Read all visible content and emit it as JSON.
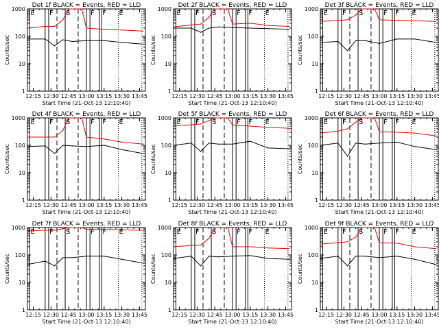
{
  "chart_data": {
    "type": "line",
    "colors": {
      "events": "#000000",
      "lld": "#e00000"
    },
    "yscale": "log",
    "ylim": [
      1,
      1000
    ],
    "y_ticks": [
      1,
      10,
      100,
      1000
    ],
    "y_tick_labels": [
      "1",
      "10",
      "100",
      "1000"
    ],
    "ylabel": "Counts/sec",
    "xlabel": "Start Time (21-Oct-13 12:10:40)",
    "xlim": [
      "12:10",
      "13:50"
    ],
    "x_ticks": [
      "12:15",
      "12:30",
      "12:45",
      "13:00",
      "13:15",
      "13:30",
      "13:45"
    ],
    "x_tick_labels": [
      "12:15",
      "12:30",
      "12:45",
      "13:00",
      "13:15",
      "13:30",
      "13:45"
    ],
    "markers": [
      {
        "time": "12:12",
        "style": "solid",
        "label": "E"
      },
      {
        "time": "12:25",
        "style": "solid",
        "label": ""
      },
      {
        "time": "12:28",
        "style": "solid",
        "label": "F"
      },
      {
        "time": "12:35",
        "style": "dashed",
        "label": ""
      },
      {
        "time": "12:42",
        "style": "solid",
        "label": "S"
      },
      {
        "time": "12:53",
        "style": "dashed",
        "label": ""
      },
      {
        "time": "13:00",
        "style": "solid",
        "label": ""
      },
      {
        "time": "13:03",
        "style": "solid",
        "label": "F"
      },
      {
        "time": "13:11",
        "style": "solid",
        "label": ""
      },
      {
        "time": "13:13",
        "style": "solid",
        "label": "F"
      },
      {
        "time": "13:27",
        "style": "dotted",
        "label": "E"
      },
      {
        "time": "13:47",
        "style": "dotted",
        "label": ""
      }
    ],
    "panels": [
      {
        "title": "Det 1f BLACK = Events, RED = LLD",
        "series": [
          {
            "name": "Events",
            "x": [
              "12:10",
              "12:25",
              "12:33",
              "12:40",
              "12:48",
              "13:00",
              "13:15",
              "13:30",
              "13:48"
            ],
            "values": [
              80,
              80,
              45,
              75,
              65,
              70,
              70,
              60,
              52
            ]
          },
          {
            "name": "LLD",
            "x": [
              "12:10",
              "12:25",
              "12:33",
              "12:40",
              "12:45",
              "12:50",
              "12:56",
              "13:00",
              "13:15",
              "13:30",
              "13:48"
            ],
            "values": [
              200,
              230,
              230,
              400,
              1000,
              1000,
              1000,
              200,
              180,
              170,
              155
            ]
          }
        ]
      },
      {
        "title": "Det 2f BLACK = Events, RED = LLD",
        "series": [
          {
            "name": "Events",
            "x": [
              "12:10",
              "12:25",
              "12:33",
              "12:40",
              "12:48",
              "13:00",
              "13:15",
              "13:30",
              "13:48"
            ],
            "values": [
              200,
              200,
              140,
              200,
              220,
              210,
              200,
              190,
              180
            ]
          },
          {
            "name": "LLD",
            "x": [
              "12:10",
              "12:25",
              "12:33",
              "12:40",
              "12:45",
              "12:50",
              "12:56",
              "13:00",
              "13:15",
              "13:30",
              "13:48"
            ],
            "values": [
              220,
              260,
              280,
              500,
              1000,
              1000,
              1000,
              280,
              300,
              250,
              230
            ]
          }
        ]
      },
      {
        "title": "Det 3f BLACK = Events, RED = LLD",
        "series": [
          {
            "name": "Events",
            "x": [
              "12:10",
              "12:25",
              "12:33",
              "12:40",
              "12:48",
              "13:00",
              "13:15",
              "13:30",
              "13:48"
            ],
            "values": [
              60,
              65,
              30,
              70,
              70,
              55,
              80,
              80,
              60
            ]
          },
          {
            "name": "LLD",
            "x": [
              "12:10",
              "12:25",
              "12:33",
              "12:40",
              "12:45",
              "12:50",
              "12:56",
              "13:00",
              "13:15",
              "13:30",
              "13:48"
            ],
            "values": [
              350,
              380,
              400,
              600,
              1000,
              1000,
              1000,
              400,
              380,
              370,
              350
            ]
          }
        ]
      },
      {
        "title": "Det 4f BLACK = Events, RED = LLD",
        "series": [
          {
            "name": "Events",
            "x": [
              "12:10",
              "12:25",
              "12:33",
              "12:40",
              "12:48",
              "13:00",
              "13:15",
              "13:30",
              "13:48"
            ],
            "values": [
              90,
              95,
              50,
              100,
              95,
              90,
              100,
              70,
              50
            ]
          },
          {
            "name": "LLD",
            "x": [
              "12:10",
              "12:25",
              "12:33",
              "12:40",
              "12:45",
              "12:50",
              "12:56",
              "13:00",
              "13:15",
              "13:30",
              "13:48"
            ],
            "values": [
              200,
              200,
              200,
              350,
              1000,
              1000,
              1000,
              200,
              170,
              130,
              110
            ]
          }
        ]
      },
      {
        "title": "Det 5f BLACK = Events, RED = LLD",
        "series": [
          {
            "name": "Events",
            "x": [
              "12:10",
              "12:25",
              "12:33",
              "12:40",
              "12:48",
              "13:00",
              "13:15",
              "13:30",
              "13:48"
            ],
            "values": [
              100,
              120,
              60,
              120,
              110,
              110,
              140,
              80,
              75
            ]
          },
          {
            "name": "LLD",
            "x": [
              "12:10",
              "12:25",
              "12:33",
              "12:40",
              "12:45",
              "12:50",
              "12:56",
              "13:00",
              "13:15",
              "13:30",
              "13:48"
            ],
            "values": [
              520,
              560,
              600,
              800,
              1000,
              1000,
              1000,
              550,
              500,
              450,
              420
            ]
          }
        ]
      },
      {
        "title": "Det 6f BLACK = Events, RED = LLD",
        "series": [
          {
            "name": "Events",
            "x": [
              "12:10",
              "12:25",
              "12:33",
              "12:40",
              "12:48",
              "13:00",
              "13:15",
              "13:30",
              "13:48"
            ],
            "values": [
              100,
              120,
              40,
              120,
              110,
              120,
              130,
              90,
              70
            ]
          },
          {
            "name": "LLD",
            "x": [
              "12:10",
              "12:25",
              "12:33",
              "12:40",
              "12:45",
              "12:50",
              "12:56",
              "13:00",
              "13:15",
              "13:30",
              "13:48"
            ],
            "values": [
              280,
              330,
              400,
              700,
              1000,
              1000,
              1000,
              310,
              300,
              280,
              220
            ]
          }
        ]
      },
      {
        "title": "Det 7f BLACK = Events, RED = LLD",
        "series": [
          {
            "name": "Events",
            "x": [
              "12:10",
              "12:25",
              "12:33",
              "12:40",
              "12:48",
              "13:00",
              "13:15",
              "13:30",
              "13:48"
            ],
            "values": [
              45,
              60,
              40,
              80,
              80,
              90,
              90,
              70,
              50
            ]
          },
          {
            "name": "LLD",
            "x": [
              "12:10",
              "12:25",
              "12:33",
              "12:40",
              "12:45",
              "12:50",
              "12:56",
              "13:00",
              "13:15",
              "13:30",
              "13:48"
            ],
            "values": [
              750,
              800,
              800,
              900,
              1000,
              1000,
              1000,
              850,
              850,
              820,
              800
            ]
          }
        ]
      },
      {
        "title": "Det 8f BLACK = Events, RED = LLD",
        "series": [
          {
            "name": "Events",
            "x": [
              "12:10",
              "12:25",
              "12:33",
              "12:40",
              "12:48",
              "13:00",
              "13:15",
              "13:30",
              "13:48"
            ],
            "values": [
              75,
              90,
              40,
              90,
              85,
              90,
              95,
              75,
              70
            ]
          },
          {
            "name": "LLD",
            "x": [
              "12:10",
              "12:25",
              "12:33",
              "12:40",
              "12:45",
              "12:50",
              "12:56",
              "13:00",
              "13:15",
              "13:30",
              "13:48"
            ],
            "values": [
              200,
              220,
              230,
              400,
              1000,
              1000,
              1000,
              200,
              200,
              180,
              170
            ]
          }
        ]
      },
      {
        "title": "Det 9f BLACK = Events, RED = LLD",
        "series": [
          {
            "name": "Events",
            "x": [
              "12:10",
              "12:25",
              "12:33",
              "12:40",
              "12:48",
              "13:00",
              "13:15",
              "13:30",
              "13:48"
            ],
            "values": [
              75,
              90,
              40,
              90,
              90,
              80,
              90,
              70,
              45
            ]
          },
          {
            "name": "LLD",
            "x": [
              "12:10",
              "12:25",
              "12:33",
              "12:40",
              "12:45",
              "12:50",
              "12:56",
              "13:00",
              "13:15",
              "13:30",
              "13:48"
            ],
            "values": [
              250,
              280,
              300,
              450,
              1000,
              1000,
              1000,
              280,
              270,
              200,
              170
            ]
          }
        ]
      }
    ]
  }
}
